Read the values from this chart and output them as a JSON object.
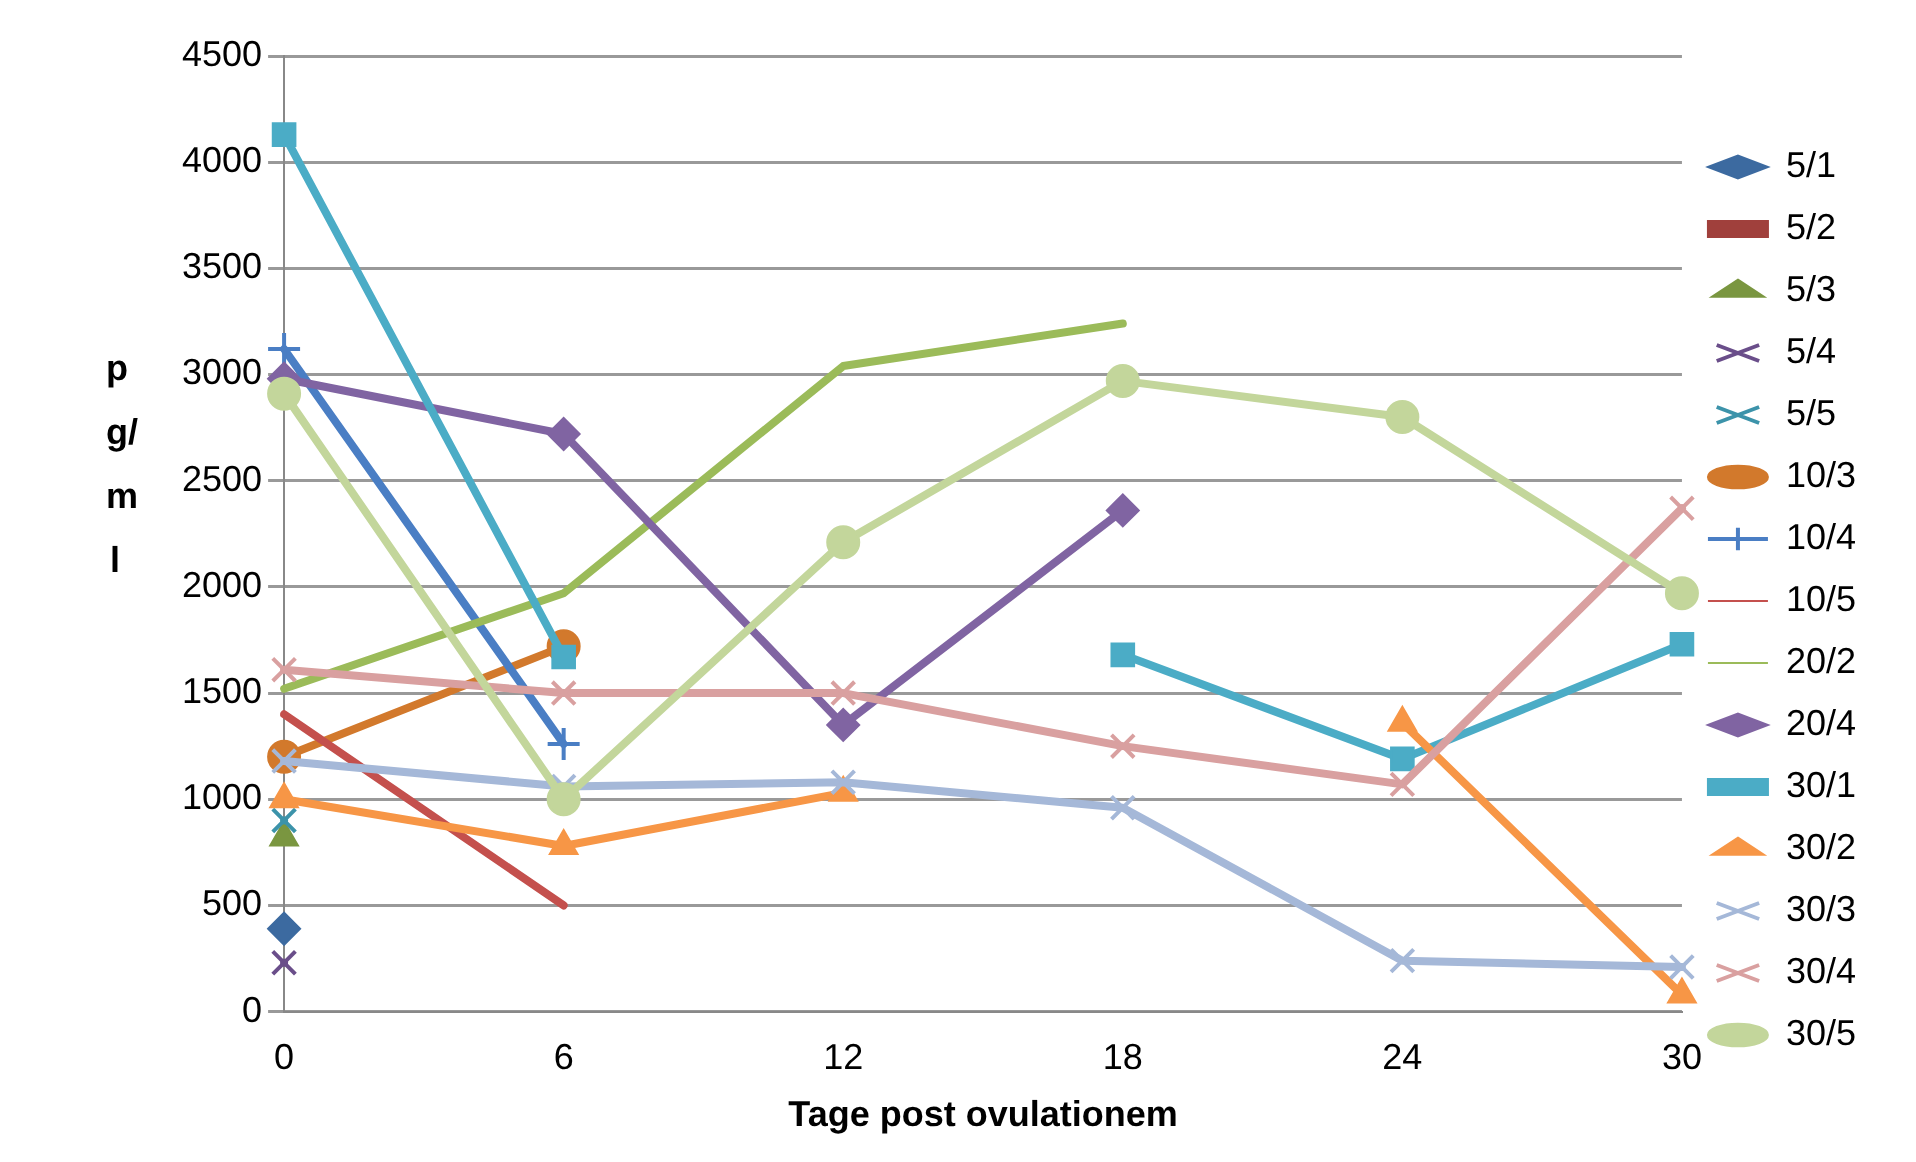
{
  "chart_data": {
    "type": "line",
    "xlabel": "Tage post ovulationem",
    "ylabel": "pg/ml",
    "categories": [
      "0",
      "6",
      "12",
      "18",
      "24",
      "30"
    ],
    "ylim": [
      0,
      4500
    ],
    "yticks": [
      0,
      500,
      1000,
      1500,
      2000,
      2500,
      3000,
      3500,
      4000,
      4500
    ],
    "grid": "y",
    "legend": "right",
    "line_style": "solid",
    "series": [
      {
        "name": "5/1",
        "color": "#3c6aa0",
        "marker": "diamond",
        "values": [
          390,
          null,
          null,
          null,
          null,
          null
        ]
      },
      {
        "name": "5/2",
        "color": "#a0403c",
        "marker": "square",
        "values": [
          null,
          null,
          null,
          null,
          null,
          null
        ]
      },
      {
        "name": "5/3",
        "color": "#7a9640",
        "marker": "triangle",
        "values": [
          820,
          null,
          null,
          null,
          null,
          null
        ]
      },
      {
        "name": "5/4",
        "color": "#6a4e8a",
        "marker": "cross",
        "values": [
          230,
          null,
          null,
          null,
          null,
          null
        ]
      },
      {
        "name": "5/5",
        "color": "#3c93aa",
        "marker": "cross",
        "values": [
          900,
          null,
          null,
          null,
          null,
          null
        ]
      },
      {
        "name": "10/3",
        "color": "#d2792c",
        "marker": "circle",
        "values": [
          1200,
          1720,
          null,
          null,
          null,
          null
        ]
      },
      {
        "name": "10/4",
        "color": "#4a7ec4",
        "marker": "plus",
        "values": [
          3120,
          1260,
          null,
          null,
          null,
          null
        ]
      },
      {
        "name": "10/5",
        "color": "#c4504d",
        "marker": "none",
        "values": [
          1400,
          500,
          null,
          null,
          null,
          null
        ]
      },
      {
        "name": "20/2",
        "color": "#9bbb59",
        "marker": "none",
        "values": [
          1520,
          1970,
          3040,
          3240,
          null,
          null
        ]
      },
      {
        "name": "20/4",
        "color": "#8064a2",
        "marker": "diamond",
        "values": [
          2980,
          2720,
          1350,
          2360,
          null,
          null
        ]
      },
      {
        "name": "30/1",
        "color": "#4bacc6",
        "marker": "square",
        "values": [
          4130,
          1670,
          null,
          1680,
          1190,
          1730
        ]
      },
      {
        "name": "30/2",
        "color": "#f79646",
        "marker": "triangle",
        "values": [
          1000,
          780,
          1030,
          null,
          1360,
          80
        ]
      },
      {
        "name": "30/3",
        "color": "#a5b8d8",
        "marker": "cross",
        "values": [
          1180,
          1060,
          1080,
          960,
          240,
          210
        ]
      },
      {
        "name": "30/4",
        "color": "#d9a0a0",
        "marker": "cross",
        "values": [
          1610,
          1500,
          1500,
          1250,
          1070,
          2370
        ]
      },
      {
        "name": "30/5",
        "color": "#c3d69b",
        "marker": "circle",
        "values": [
          2910,
          1000,
          2210,
          2970,
          2800,
          1970
        ]
      }
    ]
  }
}
